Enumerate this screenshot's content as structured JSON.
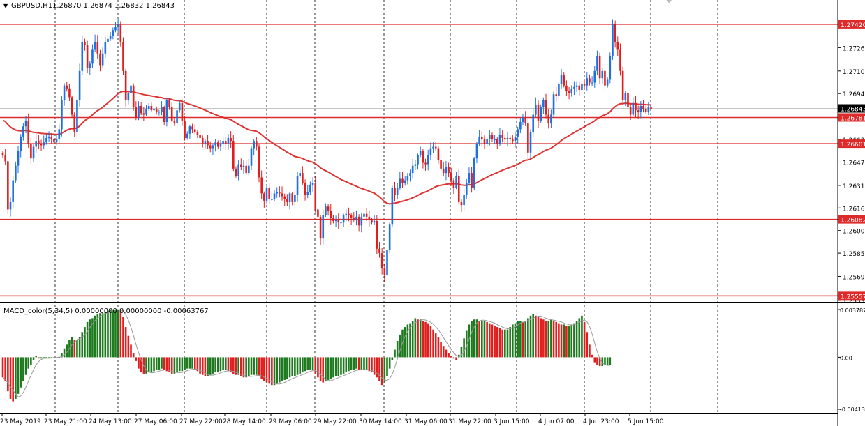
{
  "chart_data": [
    {
      "type": "candlestick",
      "header": {
        "symbol": "GBPUSD,H1",
        "ohlc": "1.26870 1.26874 1.26832 1.26843"
      },
      "y_ticks": [
        "1.27420",
        "1.27260",
        "1.27100",
        "1.26945",
        "1.26780",
        "1.26630",
        "1.26475",
        "1.26315",
        "1.26160",
        "1.26005",
        "1.25850",
        "1.25690",
        "1.25530"
      ],
      "x_labels": [
        "23 May 2019",
        "23 May 21:00",
        "24 May 13:00",
        "27 May 06:00",
        "27 May 22:00",
        "28 May 14:00",
        "29 May 06:00",
        "29 May 22:00",
        "30 May 14:00",
        "31 May 06:00",
        "31 May 22:00",
        "3 Jun 15:00",
        "4 Jun 07:00",
        "4 Jun 23:00",
        "5 Jun 15:00"
      ],
      "ylim": [
        1.2553,
        1.2752
      ],
      "current_price": {
        "value": 1.26843,
        "label": "1.26843"
      },
      "horizontal_levels": [
        {
          "value": 1.2742,
          "label": "1.27420"
        },
        {
          "value": 1.26781,
          "label": "1.26781"
        },
        {
          "value": 1.26601,
          "label": "1.26601"
        },
        {
          "value": 1.26082,
          "label": "1.26082"
        },
        {
          "value": 1.25557,
          "label": "1.25557"
        }
      ],
      "colors": {
        "bull": "#1e6fe0",
        "bear": "#e01e1e",
        "level": "#dd2a2a",
        "ma": "#dd3333"
      },
      "closes": [
        1.2652,
        1.2648,
        1.2615,
        1.262,
        1.2635,
        1.2645,
        1.2655,
        1.2665,
        1.2672,
        1.2676,
        1.266,
        1.265,
        1.2658,
        1.2662,
        1.266,
        1.2659,
        1.2661,
        1.2664,
        1.2665,
        1.2663,
        1.2661,
        1.2663,
        1.267,
        1.269,
        1.27,
        1.2698,
        1.2692,
        1.268,
        1.2668,
        1.269,
        1.271,
        1.273,
        1.2728,
        1.2712,
        1.2715,
        1.2725,
        1.273,
        1.2722,
        1.2714,
        1.2722,
        1.273,
        1.2732,
        1.2734,
        1.2738,
        1.274,
        1.2742,
        1.273,
        1.271,
        1.269,
        1.2695,
        1.27,
        1.2685,
        1.2678,
        1.2686,
        1.2681,
        1.268,
        1.2684,
        1.2686,
        1.2683,
        1.2684,
        1.2682,
        1.2682,
        1.2685,
        1.2675,
        1.269,
        1.2685,
        1.2676,
        1.2674,
        1.2683,
        1.2688,
        1.2676,
        1.2664,
        1.2667,
        1.2672,
        1.267,
        1.2668,
        1.2666,
        1.2664,
        1.266,
        1.2662,
        1.2659,
        1.2657,
        1.2659,
        1.2661,
        1.2658,
        1.266,
        1.2662,
        1.266,
        1.2664,
        1.2662,
        1.2643,
        1.2638,
        1.2646,
        1.2644,
        1.2645,
        1.264,
        1.2645,
        1.2657,
        1.2662,
        1.2658,
        1.2637,
        1.2626,
        1.2621,
        1.263,
        1.2622,
        1.2622,
        1.2626,
        1.2627,
        1.2626,
        1.2624,
        1.2622,
        1.262,
        1.2626,
        1.262,
        1.2625,
        1.2638,
        1.264,
        1.2633,
        1.2625,
        1.2627,
        1.2632,
        1.2633,
        1.2615,
        1.261,
        1.2595,
        1.2611,
        1.2617,
        1.2614,
        1.2609,
        1.2607,
        1.2608,
        1.2606,
        1.2606,
        1.2611,
        1.2612,
        1.2611,
        1.2609,
        1.2608,
        1.261,
        1.2604,
        1.261,
        1.2612,
        1.261,
        1.2608,
        1.2606,
        1.2607,
        1.2588,
        1.2585,
        1.2575,
        1.257,
        1.2587,
        1.2605,
        1.263,
        1.2625,
        1.263,
        1.2636,
        1.2633,
        1.2635,
        1.2638,
        1.264,
        1.2645,
        1.2646,
        1.2652,
        1.2655,
        1.2647,
        1.2646,
        1.2652,
        1.2657,
        1.2658,
        1.2657,
        1.2649,
        1.2643,
        1.264,
        1.2644,
        1.264,
        1.2635,
        1.263,
        1.2638,
        1.262,
        1.2618,
        1.2625,
        1.2633,
        1.264,
        1.263,
        1.265,
        1.266,
        1.2665,
        1.2663,
        1.266,
        1.2663,
        1.2666,
        1.2663,
        1.2663,
        1.266,
        1.2666,
        1.2664,
        1.2663,
        1.2664,
        1.2663,
        1.2662,
        1.2665,
        1.267,
        1.2675,
        1.2678,
        1.2674,
        1.2654,
        1.2668,
        1.268,
        1.2687,
        1.2676,
        1.2685,
        1.269,
        1.268,
        1.2674,
        1.268,
        1.2694,
        1.2693,
        1.2701,
        1.2707,
        1.27,
        1.2696,
        1.2695,
        1.2698,
        1.2699,
        1.27,
        1.2697,
        1.2701,
        1.27,
        1.2705,
        1.2702,
        1.2702,
        1.271,
        1.272,
        1.2705,
        1.271,
        1.27,
        1.2704,
        1.272,
        1.2742,
        1.273,
        1.2725,
        1.271,
        1.269,
        1.2695,
        1.2685,
        1.268,
        1.2688,
        1.2683,
        1.2682,
        1.2686,
        1.2684,
        1.2682,
        1.2685,
        1.2684
      ],
      "ma_label": "",
      "macd": {
        "title": "MACD_color(5,34,5) 0.00000000 0.00000000 -0.00063767",
        "y_ticks": [
          "0.00378787",
          "0.00",
          "-0.00413"
        ],
        "ylim": [
          -0.00413,
          0.00378787
        ],
        "histogram": [
          -0.0016,
          -0.0019,
          -0.0027,
          -0.0033,
          -0.0035,
          -0.0033,
          -0.0029,
          -0.0024,
          -0.0019,
          -0.0014,
          -0.0009,
          -0.0006,
          -0.0002,
          0.0001,
          -0.0001,
          -0.0001,
          -0.0001,
          -0.0001,
          0.0,
          0.0,
          0.0,
          0.0,
          0.0,
          0.0003,
          0.0007,
          0.001,
          0.0014,
          0.0016,
          0.0014,
          0.0014,
          0.0016,
          0.002,
          0.0024,
          0.0028,
          0.003,
          0.0031,
          0.0033,
          0.0034,
          0.0035,
          0.0035,
          0.0036,
          0.0037,
          0.0038,
          0.0038,
          0.0038,
          0.0038,
          0.0037,
          0.0032,
          0.0024,
          0.0017,
          0.001,
          0.0003,
          -0.0003,
          -0.0009,
          -0.0012,
          -0.0013,
          -0.0013,
          -0.0012,
          -0.0012,
          -0.0011,
          -0.001,
          -0.001,
          -0.0009,
          -0.001,
          -0.0011,
          -0.0012,
          -0.0013,
          -0.0013,
          -0.0012,
          -0.0011,
          -0.0011,
          -0.001,
          -0.0009,
          -0.0009,
          -0.0009,
          -0.001,
          -0.0011,
          -0.0013,
          -0.0014,
          -0.0015,
          -0.0015,
          -0.0014,
          -0.0013,
          -0.0012,
          -0.0012,
          -0.0011,
          -0.001,
          -0.001,
          -0.0011,
          -0.0012,
          -0.0013,
          -0.0014,
          -0.0014,
          -0.0015,
          -0.0016,
          -0.0016,
          -0.0015,
          -0.0014,
          -0.0014,
          -0.0014,
          -0.0015,
          -0.0017,
          -0.0019,
          -0.002,
          -0.0021,
          -0.0022,
          -0.0022,
          -0.0021,
          -0.002,
          -0.0019,
          -0.0018,
          -0.0017,
          -0.0016,
          -0.0015,
          -0.0015,
          -0.0014,
          -0.0013,
          -0.0012,
          -0.0011,
          -0.001,
          -0.001,
          -0.001,
          -0.0013,
          -0.0016,
          -0.0019,
          -0.002,
          -0.0019,
          -0.0018,
          -0.0017,
          -0.0016,
          -0.0015,
          -0.0015,
          -0.0014,
          -0.0013,
          -0.0012,
          -0.0011,
          -0.001,
          -0.001,
          -0.0009,
          -0.001,
          -0.001,
          -0.001,
          -0.001,
          -0.0011,
          -0.0012,
          -0.0014,
          -0.0016,
          -0.0019,
          -0.0022,
          -0.002,
          -0.0015,
          -0.0009,
          -0.0002,
          0.0006,
          0.0013,
          0.0018,
          0.0022,
          0.0024,
          0.0026,
          0.0027,
          0.0029,
          0.0031,
          0.003,
          0.003,
          0.0029,
          0.0028,
          0.0027,
          0.0025,
          0.0022,
          0.0019,
          0.0016,
          0.0012,
          0.0009,
          0.0006,
          0.0003,
          0.0001,
          -0.0001,
          -0.0002,
          0.0002,
          0.0008,
          0.0015,
          0.0021,
          0.0026,
          0.0029,
          0.003,
          0.003,
          0.0029,
          0.0029,
          0.0029,
          0.0028,
          0.0027,
          0.0026,
          0.0025,
          0.0024,
          0.0023,
          0.0022,
          0.0022,
          0.0022,
          0.0024,
          0.0026,
          0.0027,
          0.0029,
          0.0029,
          0.0028,
          0.0029,
          0.0031,
          0.0033,
          0.0034,
          0.0033,
          0.0032,
          0.0031,
          0.003,
          0.0029,
          0.0029,
          0.003,
          0.0029,
          0.0028,
          0.0027,
          0.0026,
          0.0026,
          0.0025,
          0.0025,
          0.0026,
          0.0027,
          0.0029,
          0.0031,
          0.0033,
          0.0028,
          0.002,
          0.001,
          0.0002,
          -0.0004,
          -0.0006,
          -0.0007,
          -0.0007,
          -0.0006,
          -0.0006,
          -0.0006
        ],
        "colors": {
          "up": "#1e7a1e",
          "down": "#e01e1e"
        }
      }
    }
  ]
}
